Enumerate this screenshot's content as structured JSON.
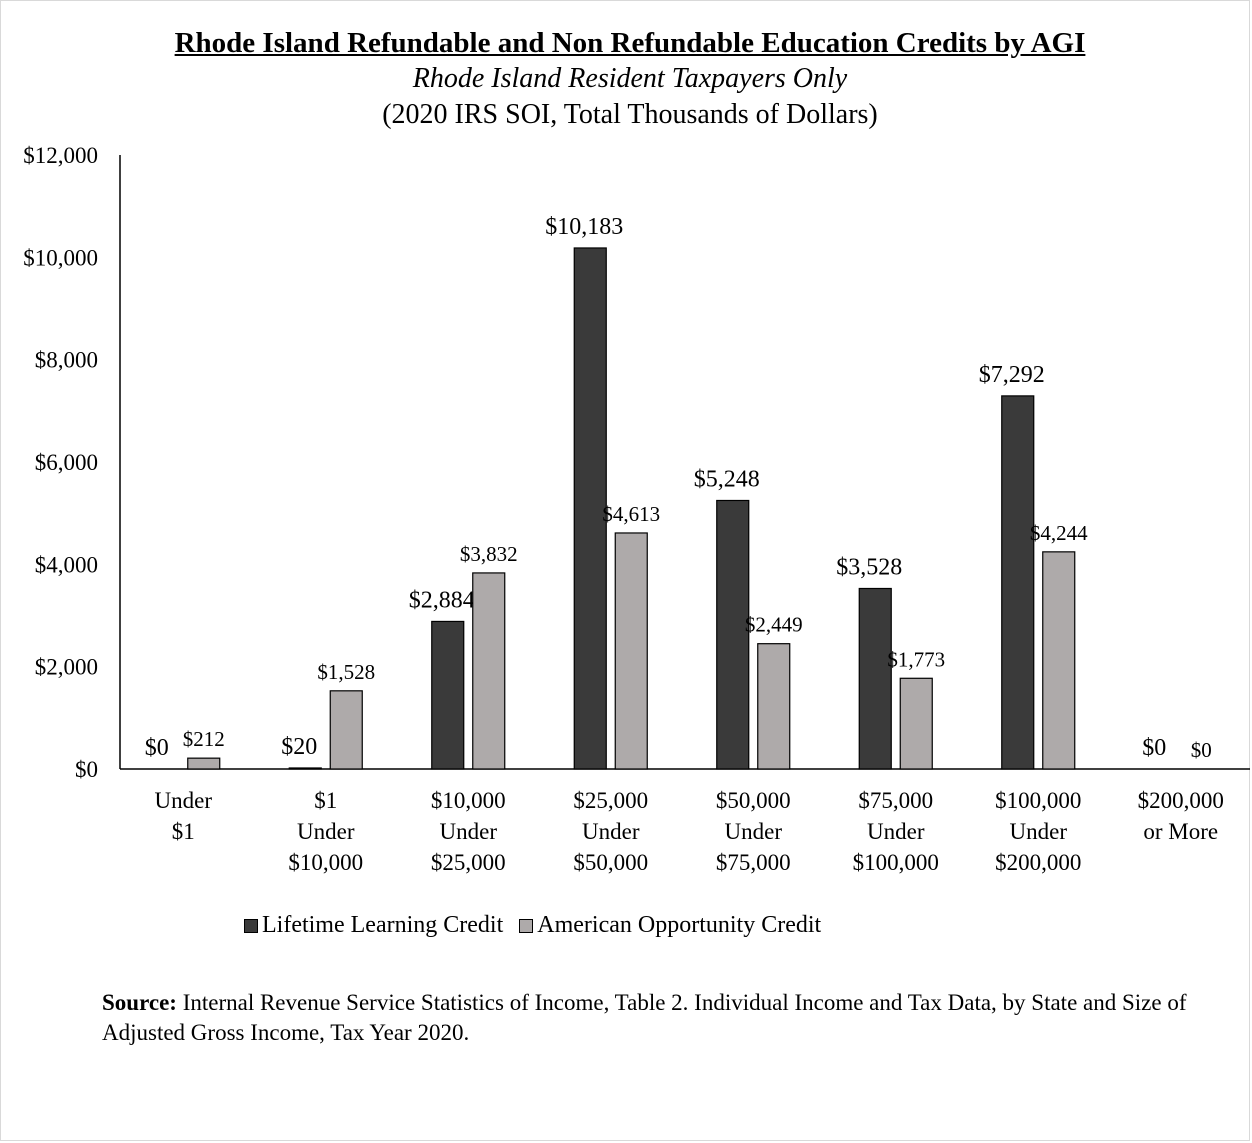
{
  "chart_data": {
    "type": "bar",
    "title": "Rhode Island Refundable and Non Refundable Education Credits by AGI",
    "subtitle": "Rhode Island Resident Taxpayers Only",
    "subtitle2": "(2020 IRS SOI, Total Thousands of Dollars)",
    "categories": [
      [
        "Under",
        "$1"
      ],
      [
        "$1",
        "Under",
        "$10,000"
      ],
      [
        "$10,000",
        "Under",
        "$25,000"
      ],
      [
        "$25,000",
        "Under",
        "$50,000"
      ],
      [
        "$50,000",
        "Under",
        "$75,000"
      ],
      [
        "$75,000",
        "Under",
        "$100,000"
      ],
      [
        "$100,000",
        "Under",
        "$200,000"
      ],
      [
        "$200,000",
        "or More"
      ]
    ],
    "series": [
      {
        "name": "Lifetime Learning Credit",
        "color": "#3a3a3a",
        "values": [
          0,
          20,
          2884,
          10183,
          5248,
          3528,
          7292,
          0
        ],
        "labels": [
          "$0",
          "$20",
          "$2,884",
          "$10,183",
          "$5,248",
          "$3,528",
          "$7,292",
          "$0"
        ]
      },
      {
        "name": "American Opportunity Credit",
        "color": "#aeaaaa",
        "values": [
          212,
          1528,
          3832,
          4613,
          2449,
          1773,
          4244,
          0
        ],
        "labels": [
          "$212",
          "$1,528",
          "$3,832",
          "$4,613",
          "$2,449",
          "$1,773",
          "$4,244",
          "$0"
        ]
      }
    ],
    "ylim": [
      0,
      12000
    ],
    "yticks": [
      "$0",
      "$2,000",
      "$4,000",
      "$6,000",
      "$8,000",
      "$10,000",
      "$12,000"
    ],
    "xlabel": "",
    "ylabel": "",
    "legend_position": "bottom",
    "grid": false
  },
  "source": {
    "label": "Source:",
    "text": " Internal Revenue Service Statistics of Income, Table 2. Individual Income and Tax Data, by State and Size of Adjusted Gross Income, Tax Year 2020."
  }
}
